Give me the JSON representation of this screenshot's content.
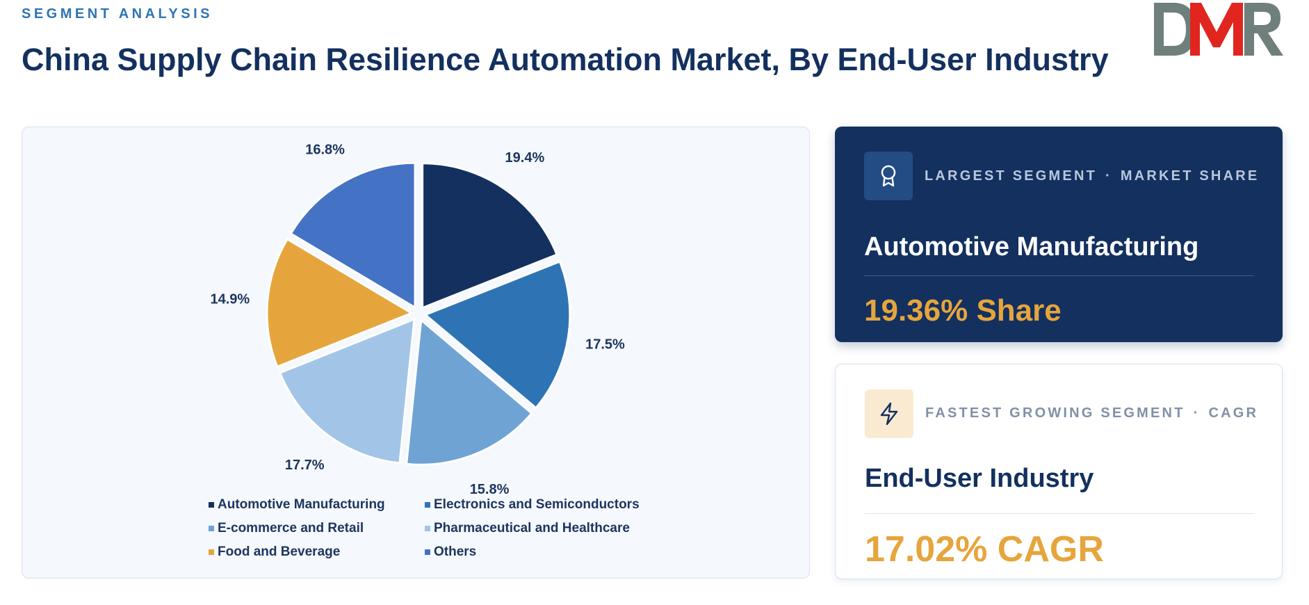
{
  "header": {
    "eyebrow": "SEGMENT ANALYSIS",
    "title": "China Supply Chain Resilience Automation Market, By End-User Industry"
  },
  "logo": {
    "text": "DMR",
    "colors": {
      "d": "#6f7f7c",
      "m": "#e0261f",
      "r": "#6f7f7c"
    }
  },
  "chart_data": {
    "type": "pie",
    "title": "",
    "start": "12 o'clock, clockwise",
    "slices": [
      {
        "name": "Automotive Manufacturing",
        "value": 19.4,
        "label": "19.4%",
        "color": "#13305f"
      },
      {
        "name": "Electronics and Semiconductors",
        "value": 17.5,
        "label": "17.5%",
        "color": "#2e74b5"
      },
      {
        "name": "E-commerce and Retail",
        "value": 15.8,
        "label": "15.8%",
        "color": "#6fa3d4"
      },
      {
        "name": "Pharmaceutical and Healthcare",
        "value": 17.7,
        "label": "17.7%",
        "color": "#a2c4e6"
      },
      {
        "name": "Food and Beverage",
        "value": 14.9,
        "label": "14.9%",
        "color": "#e6a53c"
      },
      {
        "name": "Others",
        "value": 16.8,
        "label": "16.8%",
        "color": "#4472c4"
      }
    ],
    "legend_position": "bottom"
  },
  "cards": {
    "largest": {
      "icon": "award-icon",
      "label_left": "LARGEST SEGMENT",
      "separator": "·",
      "label_right": "MARKET SHARE",
      "segment": "Automotive Manufacturing",
      "metric": "19.36% Share"
    },
    "fastest": {
      "icon": "lightning-icon",
      "label_left": "FASTEST GROWING SEGMENT",
      "separator": "·",
      "label_right": "CAGR",
      "segment": "End-User Industry",
      "metric": "17.02% CAGR"
    }
  }
}
